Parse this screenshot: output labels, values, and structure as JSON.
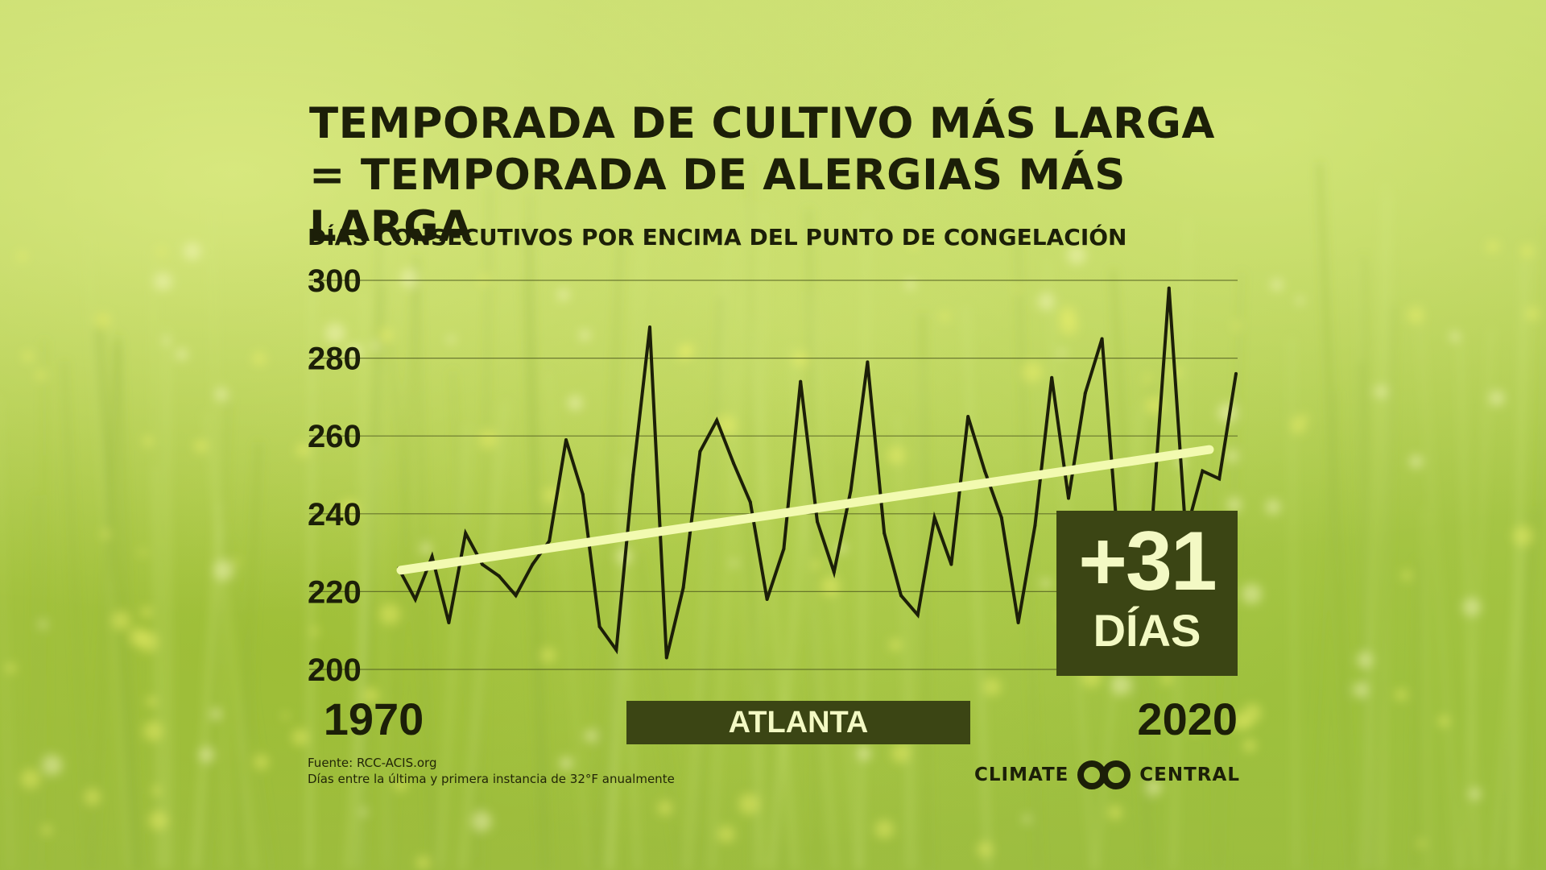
{
  "header": {
    "title_line1": "TEMPORADA DE CULTIVO MÁS LARGA",
    "title_line2": "= TEMPORADA DE ALERGIAS MÁS LARGA",
    "subtitle": "DÍAS CONSECUTIVOS POR ENCIMA DEL PUNTO DE CONGELACIÓN"
  },
  "badge": {
    "value": "+31",
    "unit": "DÍAS"
  },
  "location": "ATLANTA",
  "footer": {
    "source": "Fuente: RCC-ACIS.org",
    "note": "Días entre la última y primera instancia de 32°F anualmente"
  },
  "logo": {
    "left_word": "CLIMATE",
    "right_word": "CENTRAL"
  },
  "colors": {
    "text_dark": "#1c1f08",
    "badge_bg": "#3b4514",
    "badge_text": "#f3f9c4",
    "trend_line": "#f2fab0",
    "data_line": "#1c1f08",
    "grid": "#4f5a1f"
  },
  "chart_data": {
    "type": "line",
    "title": "TEMPORADA DE CULTIVO MÁS LARGA = TEMPORADA DE ALERGIAS MÁS LARGA",
    "ylabel": "DÍAS CONSECUTIVOS POR ENCIMA DEL PUNTO DE CONGELACIÓN",
    "xlabel": "",
    "xlim": [
      1970,
      2020
    ],
    "ylim": [
      200,
      300
    ],
    "yticks": [
      300,
      280,
      260,
      240,
      220,
      200
    ],
    "xtick_labels": [
      "1970",
      "2020"
    ],
    "grid": true,
    "x": [
      1970,
      1971,
      1972,
      1973,
      1974,
      1975,
      1976,
      1977,
      1978,
      1979,
      1980,
      1981,
      1982,
      1983,
      1984,
      1985,
      1986,
      1987,
      1988,
      1989,
      1990,
      1991,
      1992,
      1993,
      1994,
      1995,
      1996,
      1997,
      1998,
      1999,
      2000,
      2001,
      2002,
      2003,
      2004,
      2005,
      2006,
      2007,
      2008,
      2009,
      2010,
      2011,
      2012,
      2013,
      2014,
      2015,
      2016,
      2017,
      2018,
      2019,
      2020
    ],
    "series": [
      {
        "values": [
          226,
          218,
          229,
          212,
          235,
          227,
          224,
          219,
          227,
          233,
          259,
          245,
          211,
          205,
          250,
          288,
          203,
          221,
          256,
          264,
          253,
          243,
          218,
          231,
          274,
          238,
          225,
          246,
          279,
          235,
          219,
          214,
          239,
          227,
          265,
          251,
          239,
          212,
          237,
          275,
          244,
          271,
          285,
          230,
          232,
          238,
          298,
          235,
          251,
          249,
          276
        ]
      }
    ],
    "trend": {
      "start": [
        1970,
        225.5
      ],
      "end": [
        2020,
        256.5
      ]
    },
    "annotation": "+31 DÍAS"
  }
}
